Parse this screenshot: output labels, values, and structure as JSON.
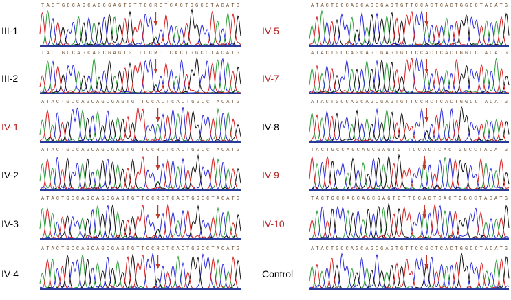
{
  "panels": [
    {
      "label": "III-1",
      "sequence": "TACTGCCAGCAGCGAGTGTTCCRCTCACTGGCCTACATG",
      "color": "#000000"
    },
    {
      "label": "III-2",
      "sequence": "TACTGCCAGCAGCGAGTGTTCCRCTCACTGGCCTACATG",
      "color": "#000000"
    },
    {
      "label": "IV-1",
      "sequence": "ATACTGCCAGCAGCGAGTGTTCCACTCACTGGCCTACATG",
      "color": "#b22222"
    },
    {
      "label": "IV-2",
      "sequence": "ATACTGCCAGCAGCGAGTGTTCCRCTCACTGGCCTACATG",
      "color": "#000000"
    },
    {
      "label": "IV-3",
      "sequence": "ATACTGCCAGCAGCGAGTGTTCCRCTCACTGGCCTACATG",
      "color": "#000000"
    },
    {
      "label": "IV-4",
      "sequence": "ATACTGCCAGCAGCGAGTGTTCCRCTCACTGGCCTACATG",
      "color": "#000000"
    },
    {
      "label": "IV-5",
      "sequence": "ATACTGCCAGCAGCGAGTGTTCCACTCACTGGCCTACATG",
      "color": "#b22222"
    },
    {
      "label": "IV-7",
      "sequence": "ATACTGCCAGCAGCGAGTGTTCCACTCACTGGCCTACATG",
      "color": "#b22222"
    },
    {
      "label": "IV-8",
      "sequence": "ATACTGCCAGCAGCGAGTGTTCCRCTCACTGGCCTACATG",
      "color": "#000000"
    },
    {
      "label": "IV-9",
      "sequence": "TACTGCCAGCAGCGAGTGTTCCACTCACTGGCCTACATG",
      "color": "#b22222"
    },
    {
      "label": "IV-10",
      "sequence": "TACTGCCAGCAGCGAGTGTTCCACTCACTGGCCTACATG",
      "color": "#b22222"
    },
    {
      "label": "Control",
      "sequence": "ATACTGCCAGCAGCGAGTGTTCCGCTCACTGGCCTACATG",
      "color": "#000000"
    }
  ]
}
